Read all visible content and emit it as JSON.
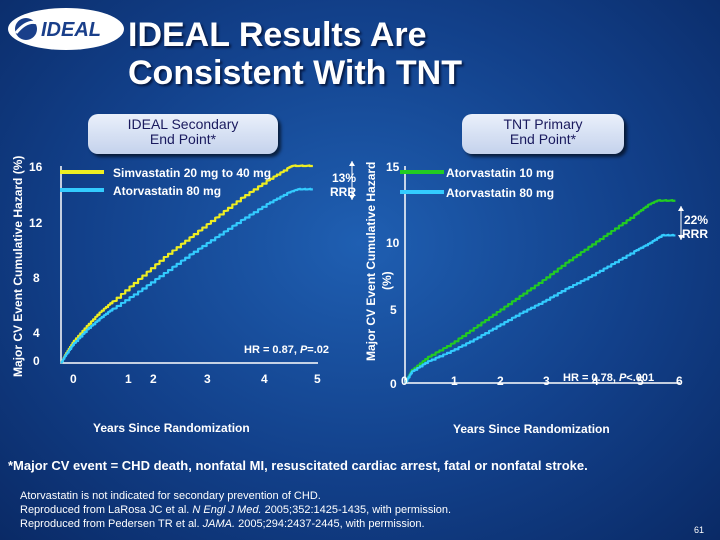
{
  "title_line1": "IDEAL Results Are",
  "title_line2": "Consistent With TNT",
  "logo": {
    "text": "IDEAL",
    "icon": "globe-swoosh-icon",
    "color": "#1a3f8a"
  },
  "colors": {
    "background": "#1a4f9c",
    "green": "#22cc22",
    "cyan": "#33ccff",
    "label_bg": "#dce6f5"
  },
  "footnote": "*Major CV event = CHD death, nonfatal MI, resuscitated cardiac arrest, fatal or nonfatal stroke.",
  "disclaimer": {
    "line1": "Atorvastatin is not indicated for secondary prevention of CHD.",
    "line2_a": "Reproduced from LaRosa JC et al. ",
    "line2_b": "N Engl J Med.",
    "line2_c": " 2005;352:1425-1435, with permission.",
    "line3_a": "Reproduced from Pedersen TR et al. ",
    "line3_b": "JAMA.",
    "line3_c": " 2005;294:2437-2445, with permission."
  },
  "page_number": "61",
  "chart_data": [
    {
      "type": "line",
      "panel_label_1": "IDEAL Secondary",
      "panel_label_2": "End Point*",
      "ylabel": "Major CV Event Cumulative Hazard (%)",
      "xlabel": "Years Since Randomization",
      "xlim": [
        0,
        5
      ],
      "ylim": [
        0,
        16
      ],
      "x_ticks": [
        "0",
        "1",
        "2",
        "3",
        "4",
        "5"
      ],
      "y_ticks": [
        "0",
        "4",
        "8",
        "12",
        "16"
      ],
      "series": [
        {
          "name": "Simvastatin 20 mg to 40 mg",
          "color": "#eeee22",
          "points": [
            [
              0,
              0
            ],
            [
              0.1,
              0.8
            ],
            [
              0.25,
              1.8
            ],
            [
              0.5,
              3.0
            ],
            [
              0.75,
              4.1
            ],
            [
              1,
              5.0
            ],
            [
              1.5,
              6.8
            ],
            [
              2,
              8.6
            ],
            [
              2.5,
              10.2
            ],
            [
              3,
              11.8
            ],
            [
              3.5,
              13.4
            ],
            [
              4,
              14.8
            ],
            [
              4.4,
              15.8
            ],
            [
              4.5,
              16.0
            ],
            [
              4.9,
              16.0
            ]
          ]
        },
        {
          "name": "Atorvastatin 80 mg",
          "color": "#33ccff",
          "points": [
            [
              0,
              0
            ],
            [
              0.1,
              0.7
            ],
            [
              0.25,
              1.6
            ],
            [
              0.5,
              2.7
            ],
            [
              0.75,
              3.6
            ],
            [
              1,
              4.4
            ],
            [
              1.5,
              5.8
            ],
            [
              2,
              7.3
            ],
            [
              2.5,
              8.8
            ],
            [
              3,
              10.2
            ],
            [
              3.5,
              11.6
            ],
            [
              4,
              12.9
            ],
            [
              4.4,
              13.8
            ],
            [
              4.6,
              14.1
            ],
            [
              4.9,
              14.1
            ]
          ]
        }
      ],
      "rrr": [
        "13%",
        "RRR"
      ],
      "hr_text": "HR = 0.87, P=.02"
    },
    {
      "type": "line",
      "panel_label_1": "TNT Primary",
      "panel_label_2": "End Point*",
      "ylabel_line1": "Major CV Event Cumulative Hazard",
      "ylabel_line2": "(%)",
      "xlabel": "Years Since Randomization",
      "xlim": [
        0,
        6
      ],
      "ylim": [
        0,
        15
      ],
      "x_ticks": [
        "0",
        "1",
        "2",
        "3",
        "4",
        "5",
        "6"
      ],
      "y_ticks": [
        "0",
        "5",
        "10",
        "15"
      ],
      "series": [
        {
          "name": "Atorvastatin 10 mg",
          "color": "#22cc22",
          "points": [
            [
              0,
              0
            ],
            [
              0.15,
              0.9
            ],
            [
              0.5,
              1.8
            ],
            [
              1,
              2.7
            ],
            [
              1.5,
              3.8
            ],
            [
              2,
              4.9
            ],
            [
              2.5,
              6.0
            ],
            [
              3,
              7.1
            ],
            [
              3.5,
              8.3
            ],
            [
              4,
              9.4
            ],
            [
              4.5,
              10.5
            ],
            [
              5,
              11.6
            ],
            [
              5.3,
              12.3
            ],
            [
              5.5,
              12.6
            ],
            [
              5.9,
              12.6
            ]
          ]
        },
        {
          "name": "Atorvastatin 80 mg",
          "color": "#33ccff",
          "points": [
            [
              0,
              0
            ],
            [
              0.15,
              0.8
            ],
            [
              0.5,
              1.5
            ],
            [
              1,
              2.2
            ],
            [
              1.5,
              3.0
            ],
            [
              2,
              3.9
            ],
            [
              2.5,
              4.8
            ],
            [
              3,
              5.6
            ],
            [
              3.5,
              6.5
            ],
            [
              4,
              7.3
            ],
            [
              4.5,
              8.2
            ],
            [
              5,
              9.1
            ],
            [
              5.3,
              9.6
            ],
            [
              5.6,
              10.2
            ],
            [
              5.9,
              10.2
            ]
          ]
        }
      ],
      "rrr": [
        "22%",
        "RRR"
      ],
      "hr_text": "HR = 0.78, P<.001"
    }
  ]
}
